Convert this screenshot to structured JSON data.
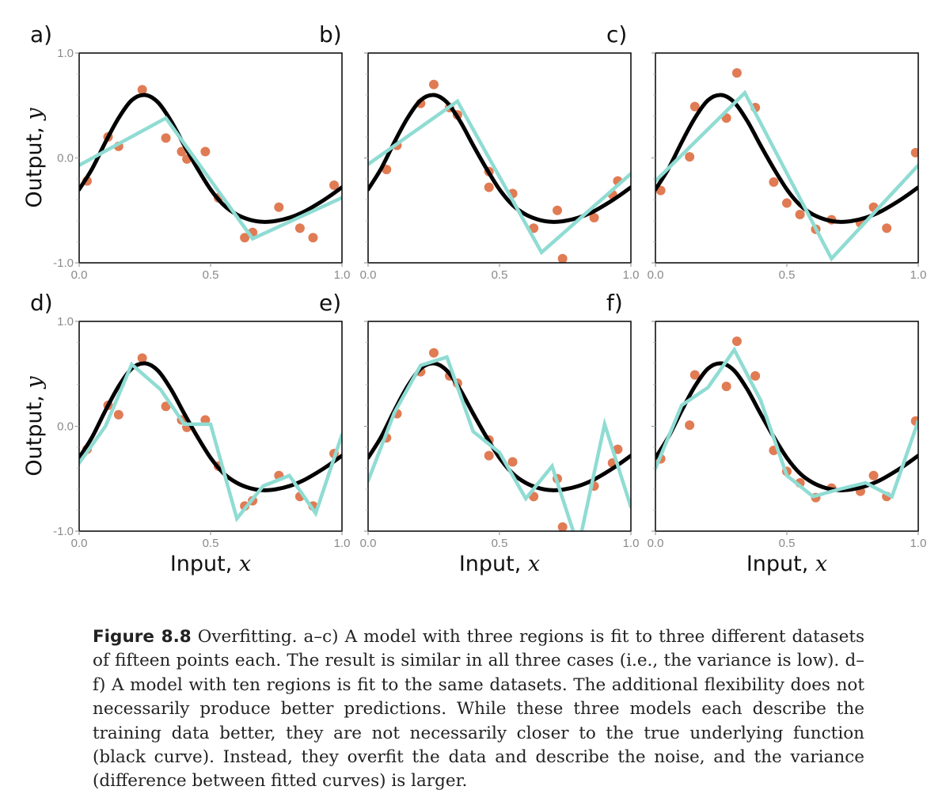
{
  "caption": {
    "label": "Figure 8.8",
    "text": " Overfitting. a–c) A model with three regions is fit to three different datasets of fifteen points each. The result is similar in all three cases (i.e., the variance is low). d–f) A model with ten regions is fit to the same datasets. The additional flexibility does not necessarily produce better predictions. While these three models each describe the training data better, they are not necessarily closer to the true underlying function (black curve). Instead, they overfit the data and describe the noise, and the variance (difference between fitted curves) is larger."
  },
  "colors": {
    "true_function": "#000000",
    "model_fit": "#8fdcd3",
    "data_points": "#e07b54",
    "tick_text": "#8a8a8a"
  },
  "axes": {
    "xlabel_prefix": "Input, ",
    "xlabel_var": "x",
    "ylabel_prefix": "Output, ",
    "ylabel_var": "y",
    "xlim": [
      0,
      1
    ],
    "ylim": [
      -1,
      1
    ],
    "xticks": [
      "0.0",
      "0.5",
      "1.0"
    ],
    "yticks": [
      "-1.0",
      "0.0",
      "1.0"
    ]
  },
  "chart_data": [
    {
      "panel": "a)",
      "type": "line",
      "series": [
        {
          "kind": "true_function",
          "x": [
            0.0,
            0.05,
            0.1,
            0.15,
            0.2,
            0.25,
            0.3,
            0.35,
            0.4,
            0.45,
            0.5,
            0.55,
            0.6,
            0.65,
            0.7,
            0.75,
            0.8,
            0.85,
            0.9,
            0.95,
            1.0
          ],
          "y": [
            -0.3,
            -0.1,
            0.15,
            0.38,
            0.55,
            0.6,
            0.53,
            0.35,
            0.12,
            -0.1,
            -0.3,
            -0.45,
            -0.54,
            -0.59,
            -0.61,
            -0.6,
            -0.57,
            -0.52,
            -0.45,
            -0.37,
            -0.28
          ]
        },
        {
          "kind": "model_fit",
          "x": [
            0.0,
            0.33,
            0.66,
            1.0
          ],
          "y": [
            -0.07,
            0.38,
            -0.77,
            -0.38
          ]
        },
        {
          "kind": "data",
          "x": [
            0.03,
            0.11,
            0.15,
            0.24,
            0.33,
            0.39,
            0.41,
            0.48,
            0.53,
            0.63,
            0.66,
            0.76,
            0.84,
            0.89,
            0.97
          ],
          "y": [
            -0.22,
            0.2,
            0.11,
            0.65,
            0.19,
            0.06,
            -0.01,
            0.06,
            -0.38,
            -0.76,
            -0.71,
            -0.47,
            -0.67,
            -0.76,
            -0.26
          ]
        }
      ]
    },
    {
      "panel": "b)",
      "type": "line",
      "series": [
        {
          "kind": "true_function",
          "x": [
            0.0,
            0.05,
            0.1,
            0.15,
            0.2,
            0.25,
            0.3,
            0.35,
            0.4,
            0.45,
            0.5,
            0.55,
            0.6,
            0.65,
            0.7,
            0.75,
            0.8,
            0.85,
            0.9,
            0.95,
            1.0
          ],
          "y": [
            -0.3,
            -0.1,
            0.15,
            0.38,
            0.55,
            0.6,
            0.53,
            0.35,
            0.12,
            -0.1,
            -0.3,
            -0.45,
            -0.54,
            -0.59,
            -0.61,
            -0.6,
            -0.57,
            -0.52,
            -0.45,
            -0.37,
            -0.28
          ]
        },
        {
          "kind": "model_fit",
          "x": [
            0.0,
            0.34,
            0.66,
            1.0
          ],
          "y": [
            -0.06,
            0.54,
            -0.9,
            -0.15
          ]
        },
        {
          "kind": "data",
          "x": [
            0.07,
            0.11,
            0.2,
            0.25,
            0.31,
            0.34,
            0.46,
            0.46,
            0.55,
            0.63,
            0.72,
            0.74,
            0.86,
            0.93,
            0.95
          ],
          "y": [
            -0.11,
            0.12,
            0.52,
            0.7,
            0.48,
            0.41,
            -0.13,
            -0.28,
            -0.34,
            -0.67,
            -0.5,
            -0.96,
            -0.57,
            -0.35,
            -0.22
          ]
        }
      ]
    },
    {
      "panel": "c)",
      "type": "line",
      "series": [
        {
          "kind": "true_function",
          "x": [
            0.0,
            0.05,
            0.1,
            0.15,
            0.2,
            0.25,
            0.3,
            0.35,
            0.4,
            0.45,
            0.5,
            0.55,
            0.6,
            0.65,
            0.7,
            0.75,
            0.8,
            0.85,
            0.9,
            0.95,
            1.0
          ],
          "y": [
            -0.3,
            -0.1,
            0.15,
            0.38,
            0.55,
            0.6,
            0.53,
            0.35,
            0.12,
            -0.1,
            -0.3,
            -0.45,
            -0.54,
            -0.59,
            -0.61,
            -0.6,
            -0.57,
            -0.52,
            -0.45,
            -0.37,
            -0.28
          ]
        },
        {
          "kind": "model_fit",
          "x": [
            0.0,
            0.34,
            0.67,
            1.0
          ],
          "y": [
            -0.22,
            0.62,
            -0.96,
            -0.07
          ]
        },
        {
          "kind": "data",
          "x": [
            0.02,
            0.13,
            0.15,
            0.27,
            0.31,
            0.38,
            0.45,
            0.5,
            0.55,
            0.61,
            0.67,
            0.78,
            0.83,
            0.88,
            0.99
          ],
          "y": [
            -0.31,
            0.01,
            0.49,
            0.38,
            0.81,
            0.48,
            -0.23,
            -0.43,
            -0.54,
            -0.68,
            -0.59,
            -0.62,
            -0.47,
            -0.67,
            0.05
          ]
        }
      ]
    },
    {
      "panel": "d)",
      "type": "line",
      "series": [
        {
          "kind": "true_function",
          "x": [
            0.0,
            0.05,
            0.1,
            0.15,
            0.2,
            0.25,
            0.3,
            0.35,
            0.4,
            0.45,
            0.5,
            0.55,
            0.6,
            0.65,
            0.7,
            0.75,
            0.8,
            0.85,
            0.9,
            0.95,
            1.0
          ],
          "y": [
            -0.3,
            -0.1,
            0.15,
            0.38,
            0.55,
            0.6,
            0.53,
            0.35,
            0.12,
            -0.1,
            -0.3,
            -0.45,
            -0.54,
            -0.59,
            -0.61,
            -0.6,
            -0.57,
            -0.52,
            -0.45,
            -0.37,
            -0.28
          ]
        },
        {
          "kind": "model_fit",
          "x": [
            0.0,
            0.1,
            0.2,
            0.31,
            0.4,
            0.5,
            0.6,
            0.7,
            0.8,
            0.9,
            1.0
          ],
          "y": [
            -0.35,
            0.0,
            0.59,
            0.35,
            0.02,
            0.02,
            -0.88,
            -0.57,
            -0.47,
            -0.83,
            -0.08
          ]
        },
        {
          "kind": "data",
          "x": [
            0.03,
            0.11,
            0.15,
            0.24,
            0.33,
            0.39,
            0.41,
            0.48,
            0.53,
            0.63,
            0.66,
            0.76,
            0.84,
            0.89,
            0.97
          ],
          "y": [
            -0.22,
            0.2,
            0.11,
            0.65,
            0.19,
            0.06,
            -0.01,
            0.06,
            -0.38,
            -0.76,
            -0.71,
            -0.47,
            -0.67,
            -0.76,
            -0.26
          ]
        }
      ]
    },
    {
      "panel": "e)",
      "type": "line",
      "series": [
        {
          "kind": "true_function",
          "x": [
            0.0,
            0.05,
            0.1,
            0.15,
            0.2,
            0.25,
            0.3,
            0.35,
            0.4,
            0.45,
            0.5,
            0.55,
            0.6,
            0.65,
            0.7,
            0.75,
            0.8,
            0.85,
            0.9,
            0.95,
            1.0
          ],
          "y": [
            -0.3,
            -0.1,
            0.15,
            0.38,
            0.55,
            0.6,
            0.53,
            0.35,
            0.12,
            -0.1,
            -0.3,
            -0.45,
            -0.54,
            -0.59,
            -0.61,
            -0.6,
            -0.57,
            -0.52,
            -0.45,
            -0.37,
            -0.28
          ]
        },
        {
          "kind": "model_fit",
          "x": [
            0.0,
            0.1,
            0.2,
            0.3,
            0.4,
            0.5,
            0.6,
            0.7,
            0.8,
            0.9,
            1.0
          ],
          "y": [
            -0.52,
            0.13,
            0.58,
            0.66,
            -0.05,
            -0.25,
            -0.69,
            -0.38,
            -1.15,
            0.02,
            -0.77
          ]
        },
        {
          "kind": "data",
          "x": [
            0.07,
            0.11,
            0.2,
            0.25,
            0.31,
            0.34,
            0.46,
            0.46,
            0.55,
            0.63,
            0.72,
            0.74,
            0.86,
            0.93,
            0.95
          ],
          "y": [
            -0.11,
            0.12,
            0.52,
            0.7,
            0.48,
            0.41,
            -0.13,
            -0.28,
            -0.34,
            -0.67,
            -0.5,
            -0.96,
            -0.57,
            -0.35,
            -0.22
          ]
        }
      ]
    },
    {
      "panel": "f)",
      "type": "line",
      "series": [
        {
          "kind": "true_function",
          "x": [
            0.0,
            0.05,
            0.1,
            0.15,
            0.2,
            0.25,
            0.3,
            0.35,
            0.4,
            0.45,
            0.5,
            0.55,
            0.6,
            0.65,
            0.7,
            0.75,
            0.8,
            0.85,
            0.9,
            0.95,
            1.0
          ],
          "y": [
            -0.3,
            -0.1,
            0.15,
            0.38,
            0.55,
            0.6,
            0.53,
            0.35,
            0.12,
            -0.1,
            -0.3,
            -0.45,
            -0.54,
            -0.59,
            -0.61,
            -0.6,
            -0.57,
            -0.52,
            -0.45,
            -0.37,
            -0.28
          ]
        },
        {
          "kind": "model_fit",
          "x": [
            0.0,
            0.1,
            0.2,
            0.3,
            0.4,
            0.5,
            0.6,
            0.7,
            0.8,
            0.9,
            1.0
          ],
          "y": [
            -0.4,
            0.2,
            0.37,
            0.73,
            0.25,
            -0.47,
            -0.67,
            -0.6,
            -0.54,
            -0.67,
            0.05
          ]
        },
        {
          "kind": "data",
          "x": [
            0.02,
            0.13,
            0.15,
            0.27,
            0.31,
            0.38,
            0.45,
            0.5,
            0.55,
            0.61,
            0.67,
            0.78,
            0.83,
            0.88,
            0.99
          ],
          "y": [
            -0.31,
            0.01,
            0.49,
            0.38,
            0.81,
            0.48,
            -0.23,
            -0.43,
            -0.54,
            -0.68,
            -0.59,
            -0.62,
            -0.47,
            -0.67,
            0.05
          ]
        }
      ]
    }
  ]
}
